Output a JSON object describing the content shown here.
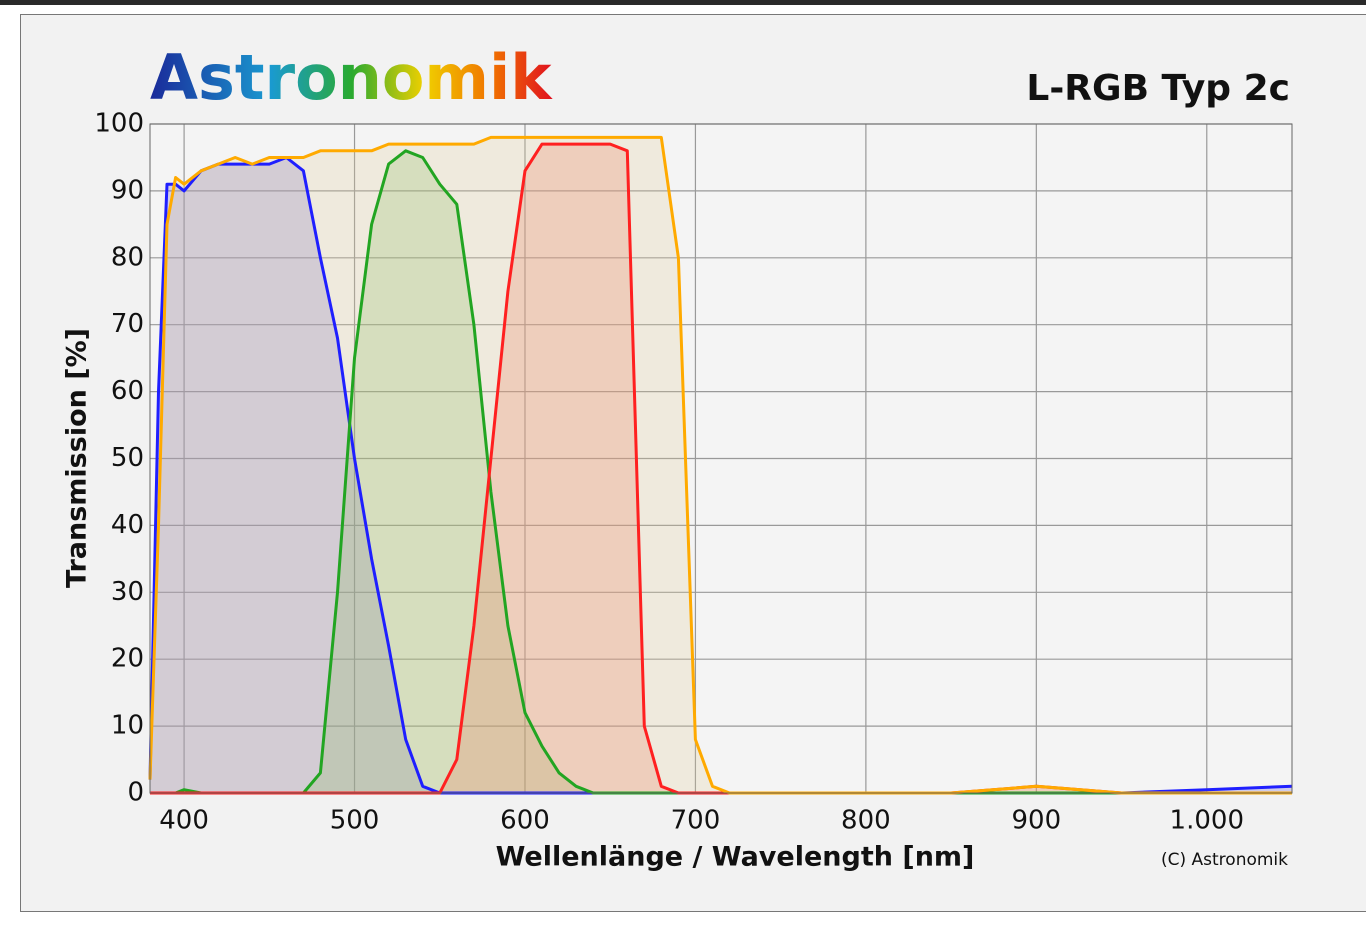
{
  "chart_data": {
    "type": "line",
    "logo": "Astronomik",
    "title": "L-RGB Typ 2c",
    "xlabel": "Wellenlänge / Wavelength [nm]",
    "ylabel": "Transmission [%]",
    "credit": "(C) Astronomik",
    "x": [
      380,
      385,
      390,
      395,
      400,
      410,
      420,
      430,
      440,
      450,
      460,
      470,
      480,
      490,
      500,
      510,
      520,
      530,
      540,
      550,
      560,
      570,
      580,
      590,
      600,
      610,
      620,
      630,
      640,
      650,
      660,
      670,
      680,
      690,
      700,
      710,
      720,
      750,
      800,
      850,
      900,
      950,
      1000,
      1050
    ],
    "series": [
      {
        "color": "#1f1fff",
        "fill": "rgba(110,100,200,0.28)",
        "values": [
          2,
          60,
          91,
          91,
          90,
          93,
          94,
          94,
          94,
          94,
          95,
          93,
          80,
          68,
          50,
          35,
          22,
          8,
          1,
          0,
          0,
          0,
          0,
          0,
          0,
          0,
          0,
          0,
          0,
          0,
          0,
          0,
          0,
          0,
          0,
          0,
          0,
          0,
          0,
          0,
          0,
          0,
          0.5,
          1
        ]
      },
      {
        "color": "#22a522",
        "fill": "rgba(110,180,80,0.25)",
        "values": [
          0,
          0,
          0,
          0,
          0.5,
          0,
          0,
          0,
          0,
          0,
          0,
          0,
          3,
          30,
          65,
          85,
          94,
          96,
          95,
          91,
          88,
          70,
          45,
          25,
          12,
          7,
          3,
          1,
          0,
          0,
          0,
          0,
          0,
          0,
          0,
          0,
          0,
          0,
          0,
          0,
          0,
          0,
          0,
          0
        ]
      },
      {
        "color": "#ff2020",
        "fill": "rgba(240,110,90,0.28)",
        "values": [
          0,
          0,
          0,
          0,
          0,
          0,
          0,
          0,
          0,
          0,
          0,
          0,
          0,
          0,
          0,
          0,
          0,
          0,
          0,
          0,
          5,
          25,
          50,
          75,
          93,
          97,
          97,
          97,
          97,
          97,
          96,
          10,
          1,
          0,
          0,
          0,
          0,
          0,
          0,
          0,
          1,
          0,
          0,
          0
        ]
      },
      {
        "color": "#ffaa00",
        "fill": "rgba(225,205,150,0.25)",
        "values": [
          2,
          40,
          85,
          92,
          91,
          93,
          94,
          95,
          94,
          95,
          95,
          95,
          96,
          96,
          96,
          96,
          97,
          97,
          97,
          97,
          97,
          97,
          98,
          98,
          98,
          98,
          98,
          98,
          98,
          98,
          98,
          98,
          98,
          80,
          8,
          1,
          0,
          0,
          0,
          0,
          1,
          0,
          0,
          0
        ]
      }
    ],
    "xlim": [
      380,
      1050
    ],
    "xticks": [
      400,
      500,
      600,
      700,
      800,
      900,
      {
        "value": 1000,
        "label": "1.000"
      }
    ],
    "ylim": [
      0,
      100
    ],
    "yticks": [
      0,
      10,
      20,
      30,
      40,
      50,
      60,
      70,
      80,
      90,
      100
    ],
    "grid": true
  }
}
